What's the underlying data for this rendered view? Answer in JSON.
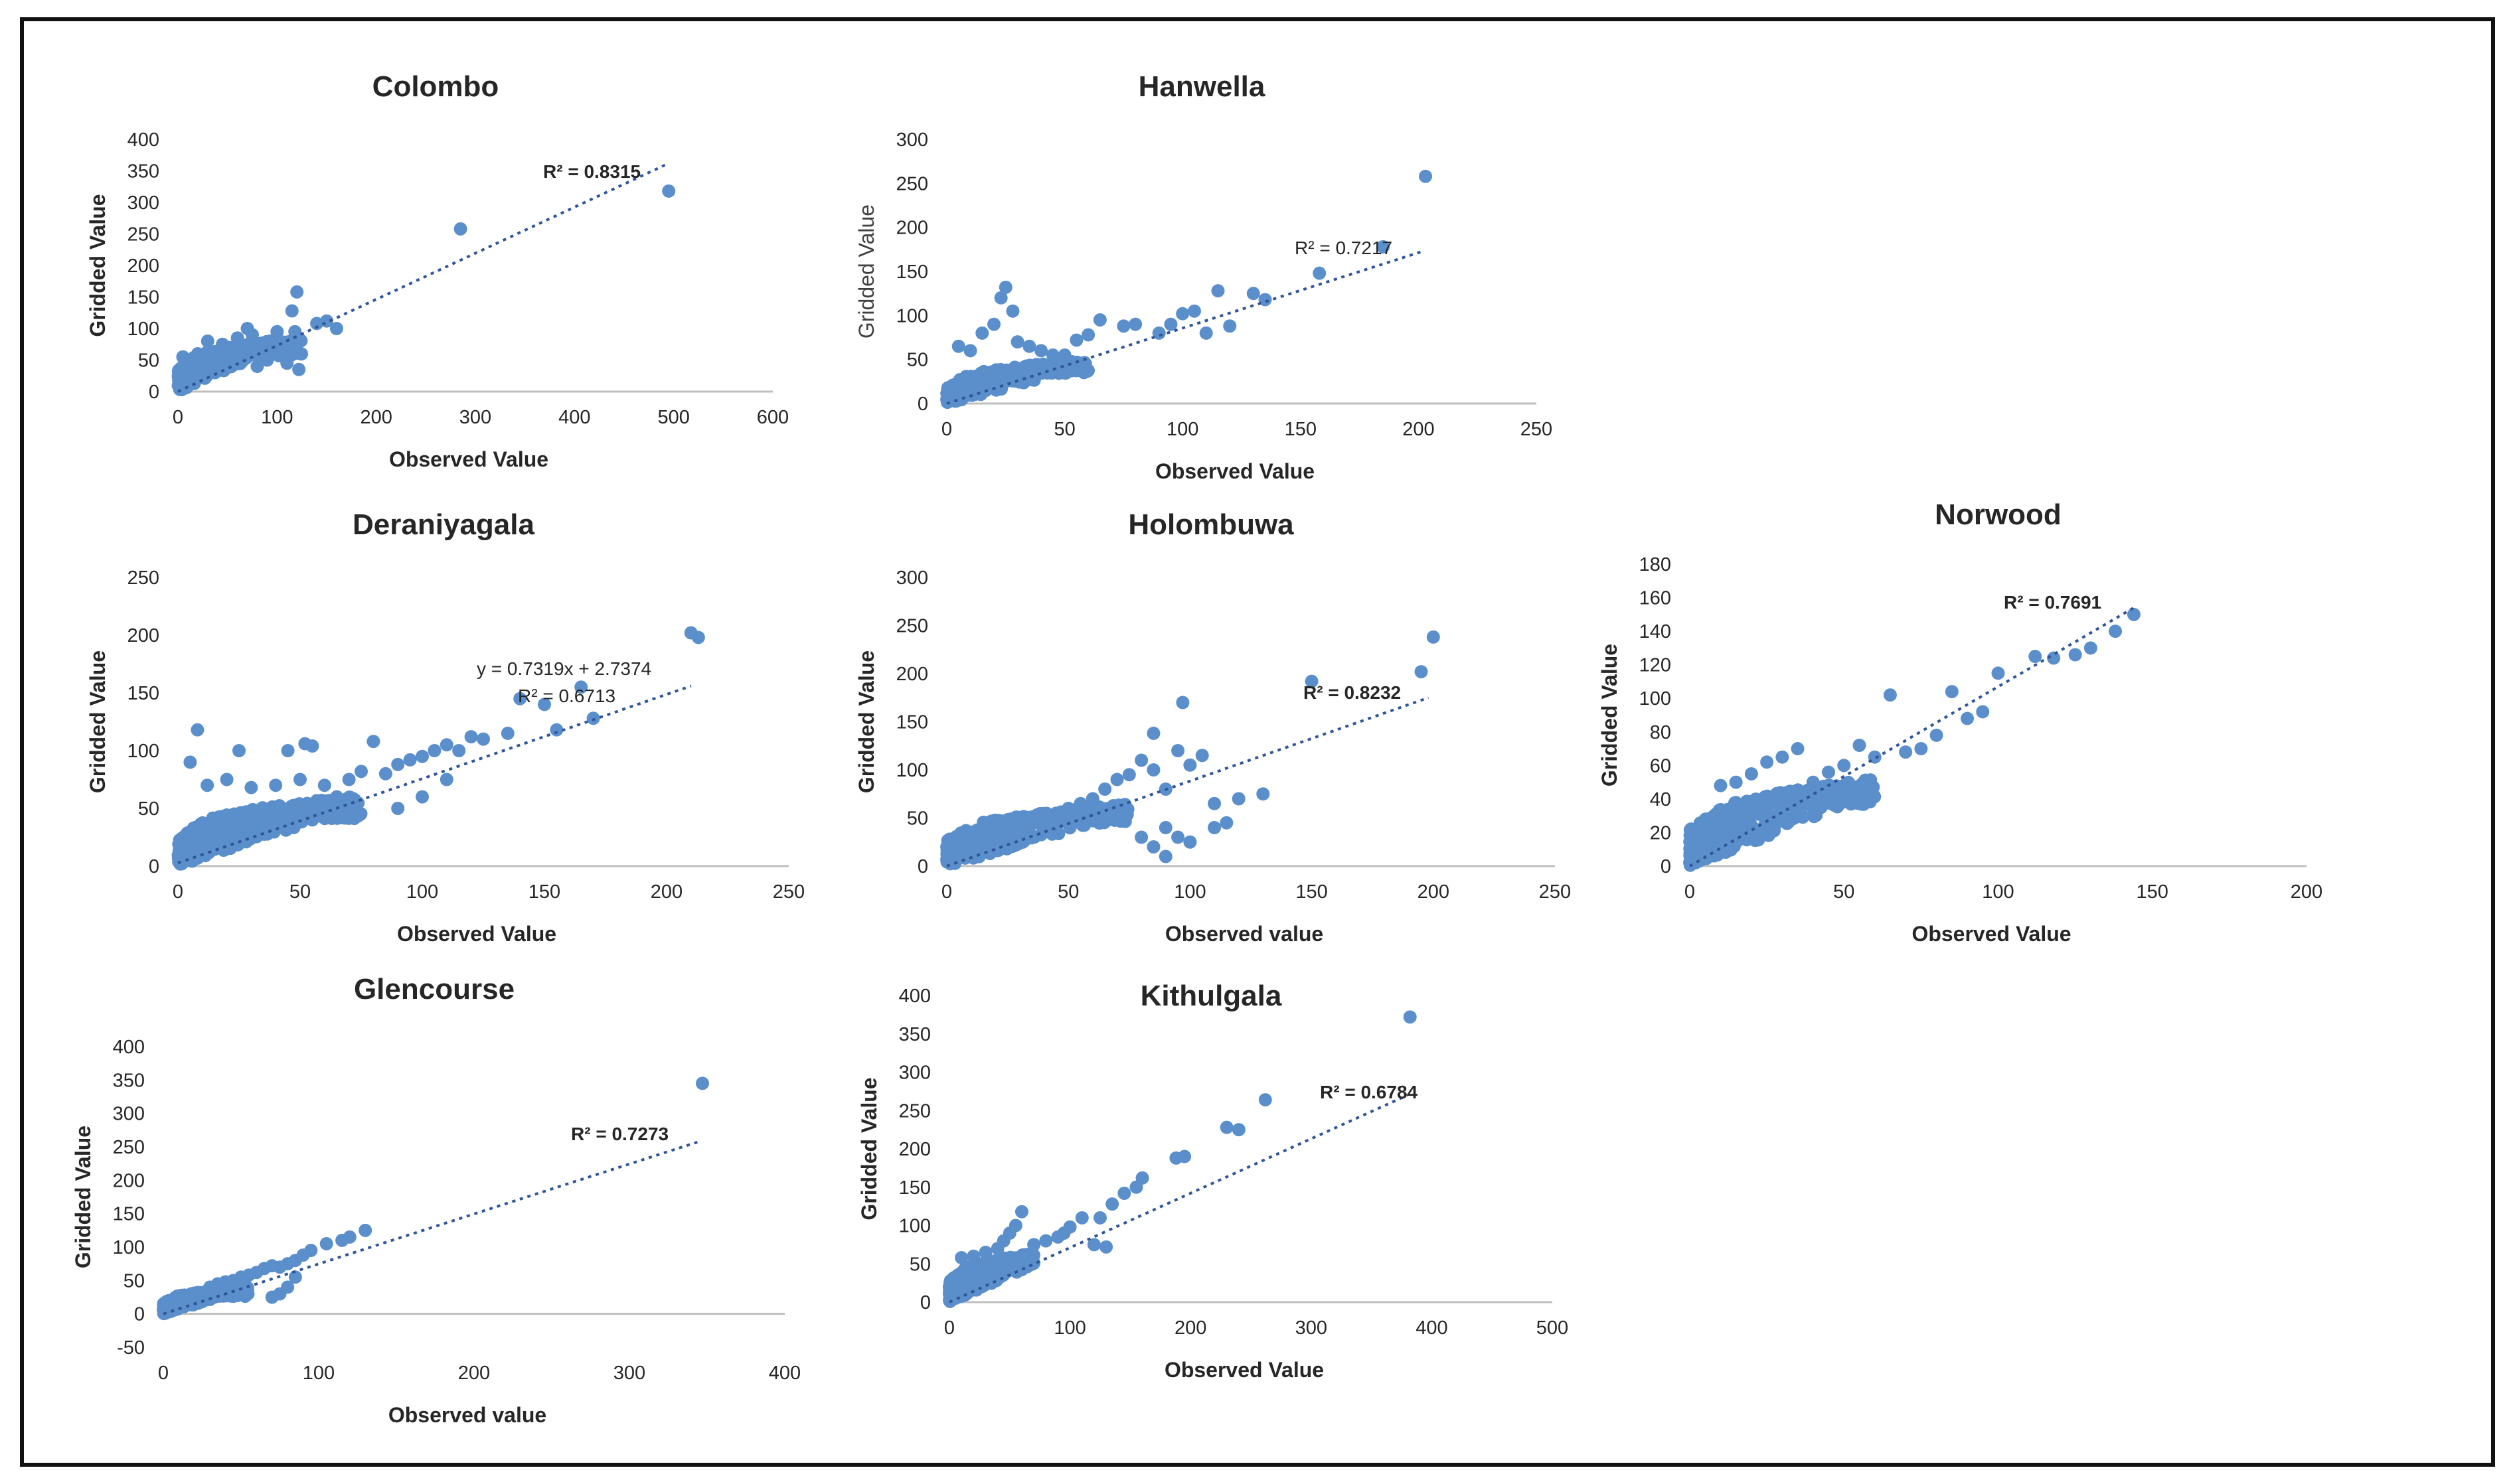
{
  "chart_data": [
    {
      "type": "scatter",
      "title": "Colombo",
      "xlabel": "Observed Value",
      "ylabel": "Gridded Value",
      "xlim": [
        0,
        600
      ],
      "ylim": [
        0,
        400
      ],
      "xticks": [
        0,
        100,
        200,
        300,
        400,
        500,
        600
      ],
      "yticks": [
        0,
        50,
        100,
        150,
        200,
        250,
        300,
        350,
        400
      ],
      "annotations": [
        "R² = 0.8315"
      ],
      "trendline": {
        "x": [
          0,
          495
        ],
        "y": [
          0,
          362
        ]
      },
      "points": [
        [
          285,
          258
        ],
        [
          495,
          318
        ],
        [
          160,
          100
        ],
        [
          150,
          112
        ],
        [
          140,
          108
        ],
        [
          120,
          158
        ],
        [
          115,
          128
        ],
        [
          118,
          95
        ],
        [
          122,
          35
        ],
        [
          108,
          60
        ],
        [
          100,
          95
        ],
        [
          95,
          80
        ],
        [
          85,
          75
        ],
        [
          70,
          100
        ],
        [
          75,
          90
        ],
        [
          60,
          85
        ],
        [
          55,
          70
        ],
        [
          50,
          65
        ],
        [
          45,
          75
        ],
        [
          30,
          80
        ],
        [
          20,
          60
        ],
        [
          5,
          55
        ],
        [
          110,
          45
        ],
        [
          90,
          50
        ],
        [
          80,
          40
        ]
      ],
      "cluster": {
        "x_max": 125,
        "y_max": 75,
        "count": 320
      },
      "subtitle_ylabel_light": false
    },
    {
      "type": "scatter",
      "title": "Hanwella",
      "xlabel": "Observed Value",
      "ylabel": "Gridded Value",
      "xlim": [
        0,
        250
      ],
      "ylim": [
        0,
        300
      ],
      "xticks": [
        0,
        50,
        100,
        150,
        200,
        250
      ],
      "yticks": [
        0,
        50,
        100,
        150,
        200,
        250,
        300
      ],
      "annotations": [
        "R² = 0.7217"
      ],
      "trendline": {
        "x": [
          0,
          202
        ],
        "y": [
          0,
          173
        ]
      },
      "points": [
        [
          203,
          258
        ],
        [
          185,
          178
        ],
        [
          158,
          148
        ],
        [
          135,
          118
        ],
        [
          130,
          125
        ],
        [
          120,
          88
        ],
        [
          115,
          128
        ],
        [
          110,
          80
        ],
        [
          105,
          105
        ],
        [
          100,
          102
        ],
        [
          95,
          90
        ],
        [
          90,
          80
        ],
        [
          80,
          90
        ],
        [
          75,
          88
        ],
        [
          65,
          95
        ],
        [
          60,
          78
        ],
        [
          55,
          72
        ],
        [
          25,
          132
        ],
        [
          23,
          120
        ],
        [
          28,
          105
        ],
        [
          15,
          80
        ],
        [
          20,
          90
        ],
        [
          10,
          60
        ],
        [
          30,
          70
        ],
        [
          40,
          60
        ],
        [
          45,
          55
        ],
        [
          35,
          65
        ],
        [
          5,
          65
        ],
        [
          50,
          55
        ]
      ],
      "cluster": {
        "x_max": 60,
        "y_max": 45,
        "count": 300
      },
      "subtitle_ylabel_light": true
    },
    {
      "type": "scatter",
      "title": "Deraniyagala",
      "xlabel": "Observed Value",
      "ylabel": "Gridded  Value",
      "xlim": [
        0,
        250
      ],
      "ylim": [
        0,
        250
      ],
      "xticks": [
        0,
        50,
        100,
        150,
        200,
        250
      ],
      "yticks": [
        0,
        50,
        100,
        150,
        200,
        250
      ],
      "annotations": [
        "y = 0.7319x + 2.7374",
        "R² = 0.6713"
      ],
      "trendline": {
        "x": [
          0,
          210
        ],
        "y": [
          2.7,
          156
        ]
      },
      "points": [
        [
          210,
          202
        ],
        [
          213,
          198
        ],
        [
          165,
          155
        ],
        [
          150,
          140
        ],
        [
          140,
          145
        ],
        [
          155,
          118
        ],
        [
          170,
          128
        ],
        [
          135,
          115
        ],
        [
          125,
          110
        ],
        [
          120,
          112
        ],
        [
          115,
          100
        ],
        [
          110,
          105
        ],
        [
          105,
          100
        ],
        [
          100,
          95
        ],
        [
          95,
          92
        ],
        [
          90,
          88
        ],
        [
          85,
          80
        ],
        [
          80,
          108
        ],
        [
          75,
          82
        ],
        [
          70,
          75
        ],
        [
          55,
          104
        ],
        [
          52,
          106
        ],
        [
          45,
          100
        ],
        [
          25,
          100
        ],
        [
          8,
          118
        ],
        [
          5,
          90
        ],
        [
          60,
          70
        ],
        [
          65,
          60
        ],
        [
          50,
          75
        ],
        [
          40,
          70
        ],
        [
          30,
          68
        ],
        [
          20,
          75
        ],
        [
          12,
          70
        ],
        [
          100,
          60
        ],
        [
          90,
          50
        ],
        [
          110,
          75
        ]
      ],
      "cluster": {
        "x_max": 75,
        "y_max": 55,
        "count": 420
      },
      "subtitle_ylabel_light": false
    },
    {
      "type": "scatter",
      "title": "Holombuwa",
      "xlabel": "Observed value",
      "ylabel": "Gridded Value",
      "xlim": [
        0,
        250
      ],
      "ylim": [
        0,
        300
      ],
      "xticks": [
        0,
        50,
        100,
        150,
        200,
        250
      ],
      "yticks": [
        0,
        50,
        100,
        150,
        200,
        250,
        300
      ],
      "annotations": [
        "R² = 0.8232"
      ],
      "trendline": {
        "x": [
          0,
          198
        ],
        "y": [
          0,
          175
        ]
      },
      "points": [
        [
          200,
          238
        ],
        [
          195,
          202
        ],
        [
          150,
          192
        ],
        [
          130,
          75
        ],
        [
          120,
          70
        ],
        [
          110,
          65
        ],
        [
          105,
          115
        ],
        [
          100,
          105
        ],
        [
          97,
          170
        ],
        [
          95,
          120
        ],
        [
          90,
          80
        ],
        [
          85,
          138
        ],
        [
          85,
          100
        ],
        [
          80,
          110
        ],
        [
          75,
          95
        ],
        [
          70,
          90
        ],
        [
          65,
          80
        ],
        [
          60,
          70
        ],
        [
          55,
          65
        ],
        [
          50,
          60
        ],
        [
          45,
          55
        ],
        [
          40,
          50
        ],
        [
          90,
          40
        ],
        [
          95,
          30
        ],
        [
          100,
          25
        ],
        [
          110,
          40
        ],
        [
          115,
          45
        ],
        [
          85,
          20
        ],
        [
          80,
          30
        ],
        [
          90,
          10
        ],
        [
          2,
          5
        ]
      ],
      "cluster": {
        "x_max": 75,
        "y_max": 60,
        "count": 350
      },
      "subtitle_ylabel_light": false
    },
    {
      "type": "scatter",
      "title": "Norwood",
      "xlabel": "Observed Value",
      "ylabel": "Gridded Value",
      "xlim": [
        0,
        200
      ],
      "ylim": [
        0,
        180
      ],
      "xticks": [
        0,
        50,
        100,
        150,
        200
      ],
      "yticks": [
        0,
        20,
        40,
        60,
        80,
        100,
        120,
        140,
        160,
        180
      ],
      "annotations": [
        "R² = 0.7691"
      ],
      "trendline": {
        "x": [
          0,
          144
        ],
        "y": [
          0,
          154
        ]
      },
      "points": [
        [
          144,
          150
        ],
        [
          138,
          140
        ],
        [
          130,
          130
        ],
        [
          125,
          126
        ],
        [
          118,
          124
        ],
        [
          112,
          125
        ],
        [
          100,
          115
        ],
        [
          95,
          92
        ],
        [
          90,
          88
        ],
        [
          85,
          104
        ],
        [
          80,
          78
        ],
        [
          75,
          70
        ],
        [
          70,
          68
        ],
        [
          65,
          102
        ],
        [
          60,
          65
        ],
        [
          55,
          72
        ],
        [
          50,
          60
        ],
        [
          45,
          56
        ],
        [
          40,
          50
        ],
        [
          35,
          70
        ],
        [
          30,
          65
        ],
        [
          25,
          62
        ],
        [
          20,
          55
        ],
        [
          15,
          50
        ],
        [
          10,
          48
        ]
      ],
      "cluster": {
        "x_max": 60,
        "y_max": 48,
        "count": 420
      },
      "subtitle_ylabel_light": false
    },
    {
      "type": "scatter",
      "title": "Glencourse",
      "xlabel": "Observed value",
      "ylabel": "Gridded Value",
      "xlim": [
        0,
        400
      ],
      "ylim": [
        -50,
        400
      ],
      "xticks": [
        0,
        100,
        200,
        300,
        400
      ],
      "yticks": [
        -50,
        0,
        50,
        100,
        150,
        200,
        250,
        300,
        350,
        400
      ],
      "annotations": [
        "R² = 0.7273"
      ],
      "trendline": {
        "x": [
          0,
          345
        ],
        "y": [
          0,
          258
        ]
      },
      "points": [
        [
          347,
          345
        ],
        [
          130,
          125
        ],
        [
          120,
          115
        ],
        [
          115,
          110
        ],
        [
          105,
          105
        ],
        [
          95,
          95
        ],
        [
          90,
          88
        ],
        [
          85,
          80
        ],
        [
          80,
          75
        ],
        [
          75,
          70
        ],
        [
          70,
          72
        ],
        [
          65,
          68
        ],
        [
          60,
          62
        ],
        [
          55,
          58
        ],
        [
          50,
          55
        ],
        [
          45,
          50
        ],
        [
          40,
          48
        ],
        [
          35,
          45
        ],
        [
          30,
          40
        ],
        [
          80,
          40
        ],
        [
          75,
          30
        ],
        [
          70,
          25
        ],
        [
          85,
          55
        ]
      ],
      "cluster": {
        "x_max": 55,
        "y_max": 35,
        "count": 300
      },
      "subtitle_ylabel_light": false
    },
    {
      "type": "scatter",
      "title": "Kithulgala",
      "xlabel": "Observed Value",
      "ylabel": "Gridded Value",
      "xlim": [
        0,
        500
      ],
      "ylim": [
        0,
        400
      ],
      "xticks": [
        0,
        100,
        200,
        300,
        400,
        500
      ],
      "yticks": [
        0,
        50,
        100,
        150,
        200,
        250,
        300,
        350,
        400
      ],
      "annotations": [
        "R² = 0.6784"
      ],
      "trendline": {
        "x": [
          0,
          380
        ],
        "y": [
          0,
          270
        ]
      },
      "points": [
        [
          382,
          372
        ],
        [
          262,
          264
        ],
        [
          240,
          225
        ],
        [
          230,
          228
        ],
        [
          195,
          190
        ],
        [
          188,
          188
        ],
        [
          160,
          162
        ],
        [
          155,
          150
        ],
        [
          145,
          142
        ],
        [
          135,
          128
        ],
        [
          130,
          72
        ],
        [
          125,
          110
        ],
        [
          120,
          75
        ],
        [
          110,
          110
        ],
        [
          100,
          98
        ],
        [
          95,
          90
        ],
        [
          90,
          85
        ],
        [
          80,
          80
        ],
        [
          70,
          75
        ],
        [
          60,
          118
        ],
        [
          55,
          100
        ],
        [
          50,
          90
        ],
        [
          45,
          80
        ],
        [
          40,
          70
        ],
        [
          30,
          65
        ],
        [
          20,
          60
        ],
        [
          10,
          58
        ]
      ],
      "cluster": {
        "x_max": 70,
        "y_max": 60,
        "count": 420
      },
      "subtitle_ylabel_light": false
    }
  ]
}
